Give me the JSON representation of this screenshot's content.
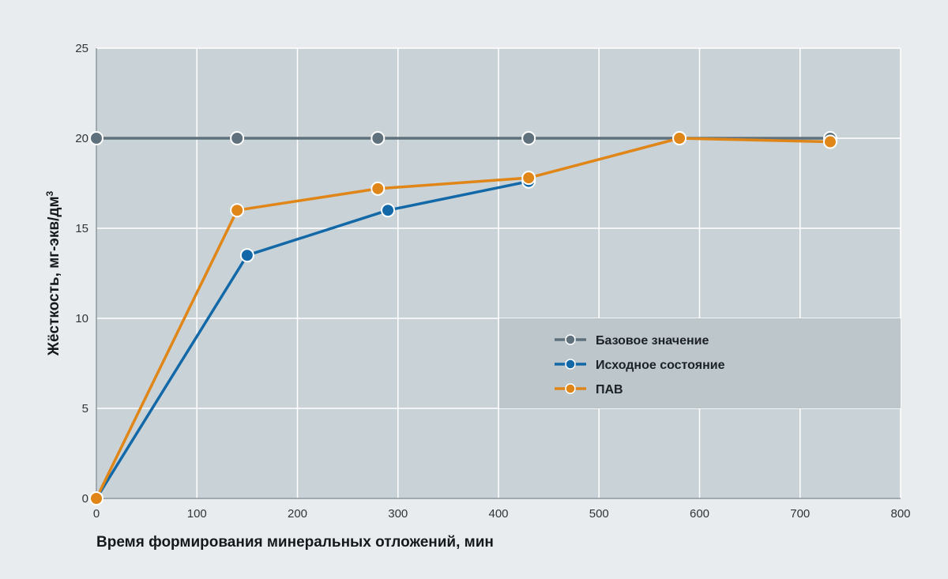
{
  "chart_data": {
    "type": "line",
    "title": "",
    "xlabel": "Время формирования минеральных отложений, мин",
    "ylabel": "Жёсткость, мг-экв/дм",
    "ylabel_superscript": "3",
    "xlim": [
      0,
      800
    ],
    "ylim": [
      0,
      25
    ],
    "xticks": [
      0,
      100,
      200,
      300,
      400,
      500,
      600,
      700,
      800
    ],
    "yticks": [
      0,
      5,
      10,
      15,
      20,
      25
    ],
    "grid": true,
    "legend_position": "center-right",
    "colors": {
      "background": "#e9ecee",
      "plot_area": "#c9d3d7",
      "legend_box": "#bcc6cb",
      "grid": "#ffffff"
    },
    "series": [
      {
        "name": "Базовое значение",
        "color": "#5f717c",
        "x": [
          0,
          140,
          280,
          430,
          580,
          730
        ],
        "y": [
          20,
          20,
          20,
          20,
          20,
          20
        ]
      },
      {
        "name": "Исходное состояние",
        "color": "#1368a8",
        "x": [
          0,
          150,
          290,
          430
        ],
        "y": [
          0,
          13.5,
          16,
          17.6
        ]
      },
      {
        "name": "ПАВ",
        "color": "#e08618",
        "x": [
          0,
          140,
          280,
          430,
          580,
          730
        ],
        "y": [
          0,
          16,
          17.2,
          17.8,
          20,
          19.8
        ]
      }
    ]
  }
}
